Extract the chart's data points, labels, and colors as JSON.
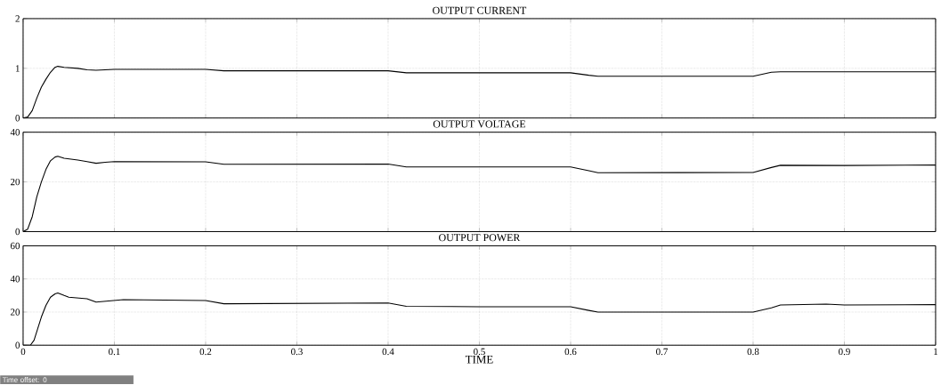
{
  "chart_data": [
    {
      "type": "line",
      "title": "OUTPUT CURRENT",
      "xlim": [
        0,
        1
      ],
      "ylim": [
        0,
        2
      ],
      "xticks": [
        0,
        0.1,
        0.2,
        0.3,
        0.4,
        0.5,
        0.6,
        0.7,
        0.8,
        0.9,
        1
      ],
      "yticks": [
        0,
        1,
        2
      ],
      "grid": true,
      "tick_labels": "y",
      "marker": "none",
      "series": [
        {
          "color": "#000000",
          "x": [
            0,
            0.005,
            0.01,
            0.015,
            0.02,
            0.025,
            0.03,
            0.035,
            0.038,
            0.045,
            0.06,
            0.07,
            0.08,
            0.09,
            0.1,
            0.2,
            0.22,
            0.3,
            0.4,
            0.42,
            0.5,
            0.6,
            0.62,
            0.63,
            0.8,
            0.82,
            0.83,
            0.9,
            1.0
          ],
          "values": [
            0,
            0.02,
            0.15,
            0.4,
            0.62,
            0.78,
            0.92,
            1.02,
            1.04,
            1.02,
            1.0,
            0.97,
            0.96,
            0.97,
            0.98,
            0.98,
            0.95,
            0.95,
            0.95,
            0.91,
            0.91,
            0.91,
            0.86,
            0.84,
            0.84,
            0.92,
            0.93,
            0.93,
            0.93
          ]
        }
      ]
    },
    {
      "type": "line",
      "title": "OUTPUT VOLTAGE",
      "xlim": [
        0,
        1
      ],
      "ylim": [
        0,
        40
      ],
      "xticks": [
        0,
        0.1,
        0.2,
        0.3,
        0.4,
        0.5,
        0.6,
        0.7,
        0.8,
        0.9,
        1
      ],
      "yticks": [
        0,
        20,
        40
      ],
      "grid": true,
      "tick_labels": "y",
      "marker": "none",
      "series": [
        {
          "color": "#000000",
          "x": [
            0,
            0.005,
            0.01,
            0.015,
            0.02,
            0.025,
            0.03,
            0.035,
            0.038,
            0.045,
            0.06,
            0.07,
            0.08,
            0.09,
            0.1,
            0.2,
            0.22,
            0.4,
            0.42,
            0.6,
            0.62,
            0.63,
            0.8,
            0.82,
            0.83,
            0.9,
            1.0
          ],
          "values": [
            0,
            1,
            6,
            14,
            20,
            25,
            28.5,
            30,
            30.3,
            29.5,
            28.8,
            28.2,
            27.5,
            27.9,
            28.2,
            28.1,
            27.1,
            27.2,
            26,
            26,
            24.5,
            23.7,
            23.8,
            25.8,
            26.7,
            26.6,
            26.8
          ]
        }
      ]
    },
    {
      "type": "line",
      "title": "OUTPUT POWER",
      "xlabel": "TIME",
      "xlim": [
        0,
        1
      ],
      "ylim": [
        0,
        60
      ],
      "xticks": [
        0,
        0.1,
        0.2,
        0.3,
        0.4,
        0.5,
        0.6,
        0.7,
        0.8,
        0.9,
        1
      ],
      "yticks": [
        0,
        20,
        40,
        60
      ],
      "grid": true,
      "marker": "none",
      "annotations": [
        "Time offset:  0"
      ],
      "series": [
        {
          "color": "#000000",
          "x": [
            0,
            0.008,
            0.012,
            0.016,
            0.02,
            0.025,
            0.03,
            0.035,
            0.038,
            0.045,
            0.05,
            0.07,
            0.08,
            0.09,
            0.11,
            0.2,
            0.22,
            0.4,
            0.42,
            0.5,
            0.6,
            0.62,
            0.63,
            0.8,
            0.82,
            0.83,
            0.88,
            0.9,
            1.0
          ],
          "values": [
            0,
            0,
            3,
            10,
            17,
            24,
            29,
            31,
            31.5,
            30,
            29,
            28,
            26,
            26.5,
            27.5,
            27,
            25,
            25.5,
            23.5,
            23.2,
            23.2,
            21,
            20,
            20,
            22.5,
            24.3,
            24.8,
            24.3,
            24.5
          ]
        }
      ]
    }
  ]
}
